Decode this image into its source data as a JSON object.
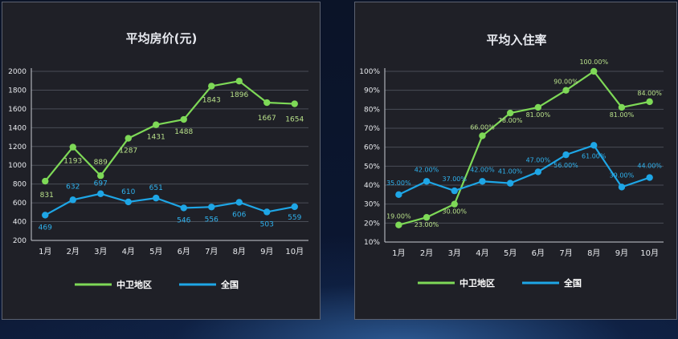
{
  "colors": {
    "zhongwei": "#7ed957",
    "national": "#1ea6e6",
    "grid": "#4a4d57",
    "axis": "#c9ccd3",
    "text": "#e8eaee",
    "panel": "#1f2027"
  },
  "chart_data": [
    {
      "type": "line",
      "title": "平均房价(元)",
      "categories": [
        "1月",
        "2月",
        "3月",
        "4月",
        "5月",
        "6月",
        "7月",
        "8月",
        "9月",
        "10月"
      ],
      "ylim": [
        200,
        2000
      ],
      "yticks": [
        200,
        400,
        600,
        800,
        1000,
        1200,
        1400,
        1600,
        1800,
        2000
      ],
      "ytick_labels": [
        "200",
        "400",
        "600",
        "800",
        "1000",
        "1200",
        "1400",
        "1600",
        "1800",
        "2000"
      ],
      "grid": true,
      "legend_position": "bottom",
      "series": [
        {
          "name": "中卫地区",
          "values": [
            831,
            1193,
            889,
            1287,
            1431,
            1488,
            1843,
            1896,
            1667,
            1654
          ],
          "labels": [
            "831",
            "1193",
            "889",
            "1287",
            "1431",
            "1488",
            "1843",
            "1896",
            "1667",
            "1654"
          ]
        },
        {
          "name": "全国",
          "values": [
            469,
            632,
            697,
            610,
            651,
            546,
            556,
            606,
            503,
            559
          ],
          "labels": [
            "469",
            "632",
            "697",
            "610",
            "651",
            "546",
            "556",
            "606",
            "503",
            "559"
          ]
        }
      ]
    },
    {
      "type": "line",
      "title": "平均入住率",
      "categories": [
        "1月",
        "2月",
        "3月",
        "4月",
        "5月",
        "6月",
        "7月",
        "8月",
        "9月",
        "10月"
      ],
      "ylim": [
        10,
        100
      ],
      "yticks": [
        10,
        20,
        30,
        40,
        50,
        60,
        70,
        80,
        90,
        100
      ],
      "ytick_labels": [
        "10%",
        "20%",
        "30%",
        "40%",
        "50%",
        "60%",
        "70%",
        "80%",
        "90%",
        "100%"
      ],
      "grid": true,
      "legend_position": "bottom",
      "series": [
        {
          "name": "中卫地区",
          "values": [
            19,
            23,
            30,
            66,
            78,
            81,
            90,
            100,
            81,
            84
          ],
          "labels": [
            "19.00%",
            "23.00%",
            "30.00%",
            "66.00%",
            "78.00%",
            "81.00%",
            "90.00%",
            "100.00%",
            "81.00%",
            "84.00%"
          ]
        },
        {
          "name": "全国",
          "values": [
            35,
            42,
            37,
            42,
            41,
            47,
            56,
            61,
            39,
            44
          ],
          "labels": [
            "35.00%",
            "42.00%",
            "37.00%",
            "42.00%",
            "41.00%",
            "47.00%",
            "56.00%",
            "61.00%",
            "39.00%",
            "44.00%"
          ]
        }
      ]
    }
  ]
}
